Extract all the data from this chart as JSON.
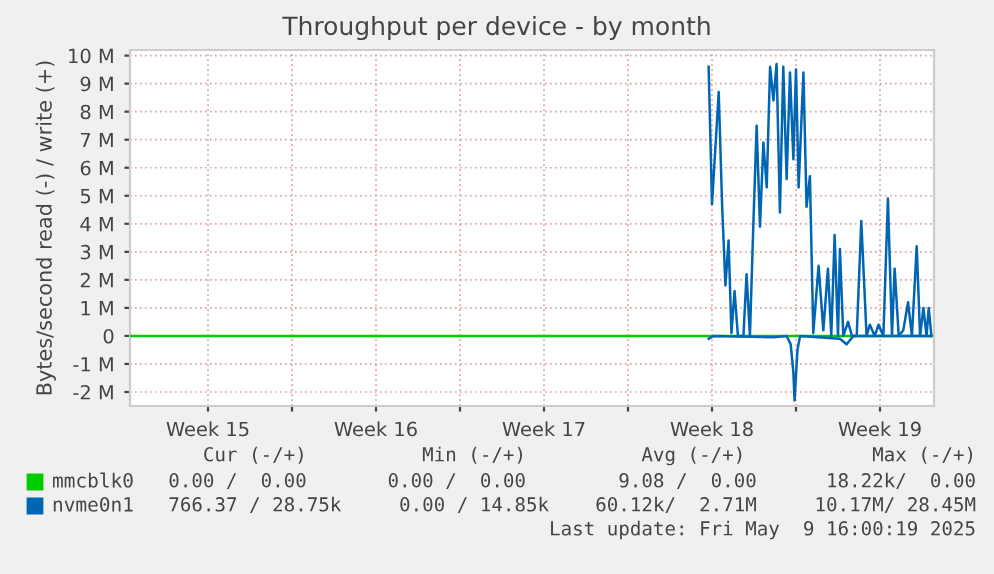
{
  "chart_data": {
    "type": "line",
    "title": "Throughput per device - by month",
    "ylabel": "Bytes/second read (-) / write (+)",
    "xlim": [
      "2025-04-06T06:00",
      "2025-05-09T18:00"
    ],
    "xticks": [
      {
        "value": "2025-04-09T12:00",
        "label": "Week 15"
      },
      {
        "value": "2025-04-13",
        "label": null
      },
      {
        "value": "2025-04-16T12:00",
        "label": "Week 16"
      },
      {
        "value": "2025-04-20",
        "label": null
      },
      {
        "value": "2025-04-23T12:00",
        "label": "Week 17"
      },
      {
        "value": "2025-04-27",
        "label": null
      },
      {
        "value": "2025-04-30T12:00",
        "label": "Week 18"
      },
      {
        "value": "2025-05-04",
        "label": null
      },
      {
        "value": "2025-05-07T12:00",
        "label": "Week 19"
      }
    ],
    "ylim": [
      -2.5,
      10.2
    ],
    "yticks": [
      {
        "value": -2,
        "label": "-2 M"
      },
      {
        "value": -1,
        "label": "-1 M"
      },
      {
        "value": 0,
        "label": "0"
      },
      {
        "value": 1,
        "label": "1 M"
      },
      {
        "value": 2,
        "label": "2 M"
      },
      {
        "value": 3,
        "label": "3 M"
      },
      {
        "value": 4,
        "label": "4 M"
      },
      {
        "value": 5,
        "label": "5 M"
      },
      {
        "value": 6,
        "label": "6 M"
      },
      {
        "value": 7,
        "label": "7 M"
      },
      {
        "value": 8,
        "label": "8 M"
      },
      {
        "value": 9,
        "label": "9 M"
      },
      {
        "value": 10,
        "label": "10 M"
      }
    ],
    "grid": true,
    "legend": "bottom",
    "series": [
      {
        "name": "mmcblk0",
        "color": "#00cc00",
        "x": [
          "2025-04-06T06:00",
          "2025-05-09T15:22"
        ],
        "values": [
          0,
          0
        ]
      },
      {
        "name": "nvme0n1",
        "color": "#0066b3",
        "x": [
          "2025-04-30T08:38",
          "2025-04-30T12:00",
          "2025-04-30T18:43",
          "2025-04-30T22:05",
          "2025-05-01T01:26",
          "2025-05-01T04:34",
          "2025-05-01T07:26",
          "2025-05-01T10:34",
          "2025-05-01T13:55",
          "2025-05-01T19:26",
          "2025-05-01T22:34",
          "2025-05-02T01:55",
          "2025-05-02T05:17",
          "2025-05-02T08:38",
          "2025-05-02T12:00",
          "2025-05-02T15:22",
          "2025-05-02T18:43",
          "2025-05-02T22:05",
          "2025-05-03T01:26",
          "2025-05-03T04:34",
          "2025-05-03T07:55",
          "2025-05-03T11:17",
          "2025-05-03T14:38",
          "2025-05-03T18:00",
          "2025-05-03T21:22",
          "2025-05-04T00:00",
          "2025-05-04T02:38",
          "2025-05-04T07:26",
          "2025-05-04T10:34",
          "2025-05-04T13:55",
          "2025-05-04T17:17",
          "2025-05-04T22:34",
          "2025-05-05T03:22",
          "2025-05-05T07:55",
          "2025-05-05T11:17",
          "2025-05-05T14:38",
          "2025-05-05T18:00",
          "2025-05-05T19:55",
          "2025-05-05T23:17",
          "2025-05-06T04:05",
          "2025-05-06T07:55",
          "2025-05-06T12:43",
          "2025-05-06T17:17",
          "2025-05-06T22:34",
          "2025-05-07T01:55",
          "2025-05-07T06:43",
          "2025-05-07T10:34",
          "2025-05-07T15:22",
          "2025-05-07T19:55",
          "2025-05-08T00:00",
          "2025-05-08T02:38",
          "2025-05-08T06:43",
          "2025-05-08T11:17",
          "2025-05-08T16:05",
          "2025-05-08T19:55",
          "2025-05-09T00:43",
          "2025-05-09T04:05",
          "2025-05-09T07:26",
          "2025-05-09T10:34",
          "2025-05-09T12:43",
          "2025-05-09T15:22"
        ],
        "values": [
          9.6,
          4.7,
          8.7,
          4.7,
          1.8,
          3.4,
          0.1,
          1.6,
          0,
          0,
          2.2,
          0,
          3.9,
          7.5,
          3.9,
          6.9,
          5.3,
          9.6,
          8.4,
          9.7,
          4.4,
          9.6,
          5.6,
          9.4,
          6.3,
          9.5,
          5.3,
          9.4,
          4.6,
          5.7,
          0.1,
          2.5,
          0.2,
          2.4,
          0,
          3.6,
          0,
          3.1,
          0,
          0.5,
          0,
          0,
          4.1,
          0,
          0.4,
          0,
          0.4,
          0,
          4.9,
          0,
          2.4,
          0,
          0.2,
          1.2,
          0,
          3.2,
          0,
          1.0,
          0,
          1.0,
          0
        ]
      },
      {
        "color": "#0066b3",
        "x": [
          "2025-04-30T08:38",
          "2025-04-30T13:26",
          "2025-05-03T01:26",
          "2025-05-03T14:38",
          "2025-05-03T18:43",
          "2025-05-03T21:22",
          "2025-05-03T22:34",
          "2025-05-04T01:26",
          "2025-05-04T04:05",
          "2025-05-05T19:55",
          "2025-05-06T02:38",
          "2025-05-06T09:22",
          "2025-05-09T15:22"
        ],
        "values": [
          -0.1,
          0,
          -0.05,
          0,
          -0.3,
          -1.3,
          -2.3,
          -0.5,
          0,
          -0.1,
          -0.3,
          0,
          0
        ]
      }
    ],
    "annotations": [
      "Cur (-/+)          Min (-/+)          Avg (-/+)           Max (-/+)",
      "0.00 /  0.00       0.00 /  0.00        9.08 /  0.00      18.22k/  0.00",
      "766.37 / 28.75k     0.00 / 14.85k    60.12k/  2.71M     10.17M/ 28.45M",
      "Last update: Fri May  9 16:00:19 2025"
    ]
  }
}
